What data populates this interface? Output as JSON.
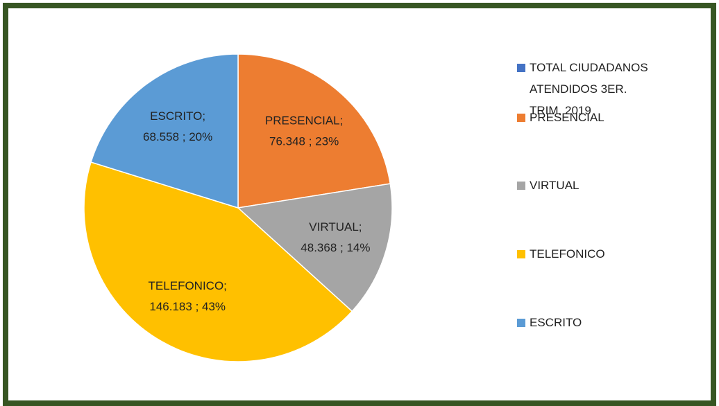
{
  "chart_data": {
    "type": "pie",
    "categories": [
      "TOTAL CIUDADANOS ATENDIDOS 3ER. TRIM. 2019",
      "PRESENCIAL",
      "VIRTUAL",
      "TELEFONICO",
      "ESCRITO"
    ],
    "values": [
      null,
      76348,
      48368,
      146183,
      68558
    ],
    "value_labels": [
      null,
      [
        "PRESENCIAL;",
        "76.348 ; 23%"
      ],
      [
        "VIRTUAL;",
        "48.368 ; 14%"
      ],
      [
        "TELEFONICO;",
        "146.183 ; 43%"
      ],
      [
        "ESCRITO;",
        "68.558 ; 20%"
      ]
    ],
    "colors": [
      "#4472c4",
      "#ed7d31",
      "#a5a5a5",
      "#ffc000",
      "#5b9bd5"
    ],
    "legend": "right"
  }
}
